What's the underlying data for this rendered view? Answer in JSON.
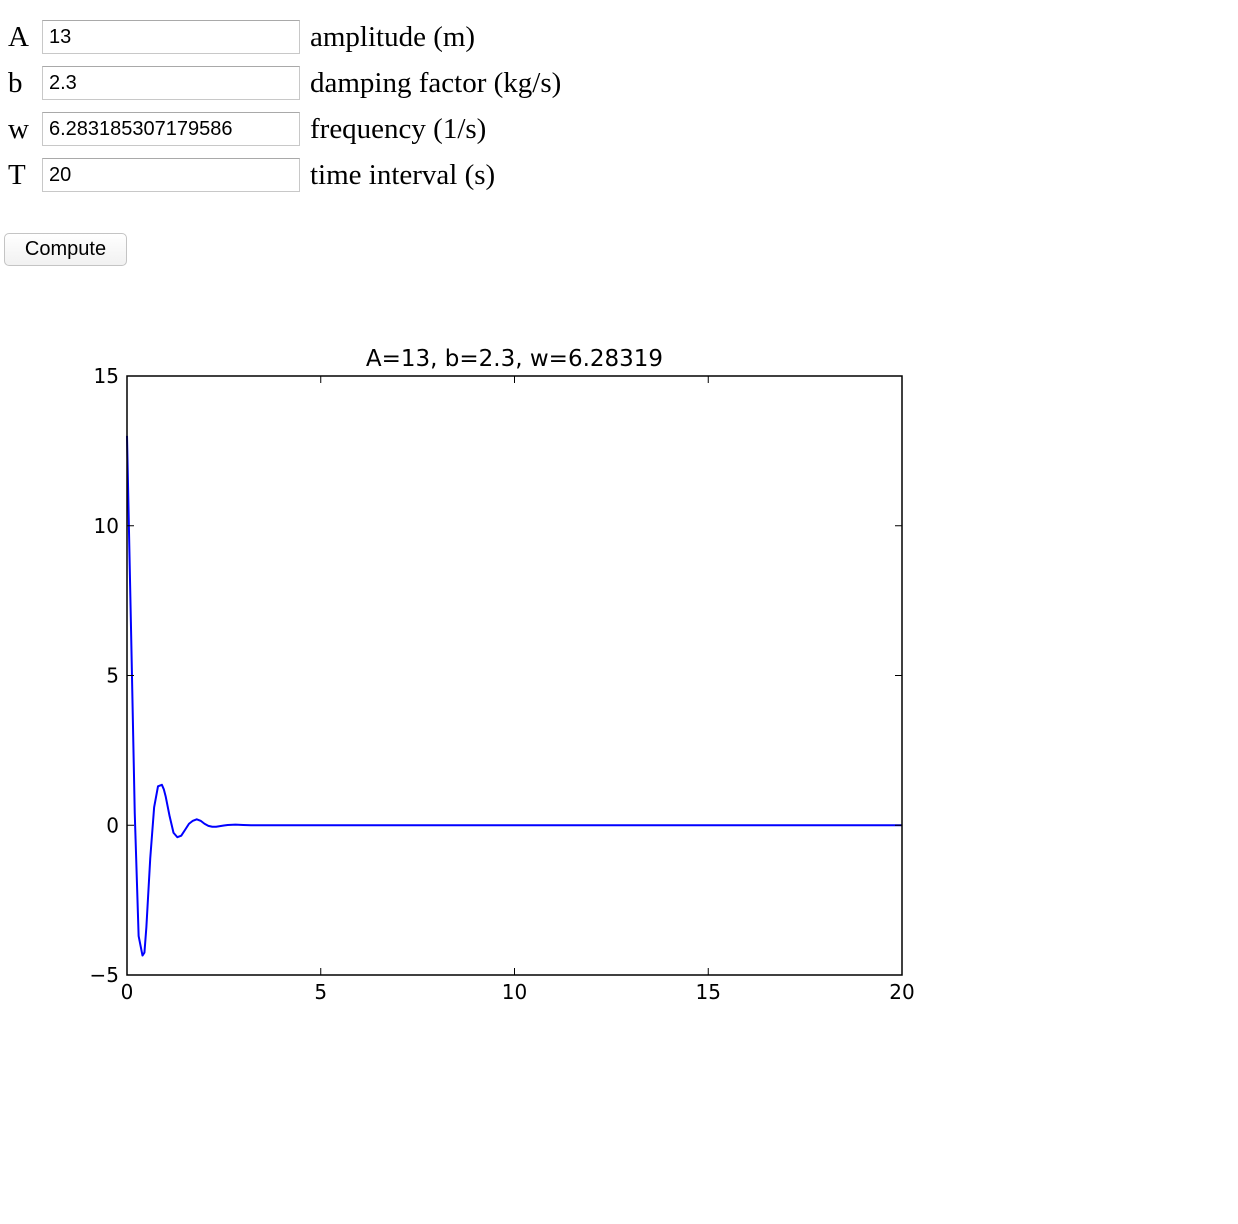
{
  "form": {
    "params": [
      {
        "label": "A",
        "value": "13",
        "description": "amplitude (m)"
      },
      {
        "label": "b",
        "value": "2.3",
        "description": "damping factor (kg/s)"
      },
      {
        "label": "w",
        "value": "6.283185307179586",
        "description": "frequency (1/s)"
      },
      {
        "label": "T",
        "value": "20",
        "description": "time interval (s)"
      }
    ],
    "compute_label": "Compute"
  },
  "chart_data": {
    "type": "line",
    "title": "A=13, b=2.3, w=6.28319",
    "xlabel": "",
    "ylabel": "",
    "xlim": [
      0,
      20
    ],
    "ylim": [
      -5,
      15
    ],
    "xticks": [
      0,
      5,
      10,
      15,
      20
    ],
    "yticks": [
      -5,
      0,
      5,
      10,
      15
    ],
    "xtick_labels": [
      "0",
      "5",
      "10",
      "15",
      "20"
    ],
    "ytick_labels": [
      "−5",
      "0",
      "5",
      "10",
      "15"
    ],
    "grid": false,
    "line_color": "#0000ff",
    "series": [
      {
        "x": [
          0,
          0.1,
          0.2,
          0.3,
          0.4,
          0.45,
          0.5,
          0.6,
          0.7,
          0.8,
          0.9,
          0.95,
          1.0,
          1.1,
          1.2,
          1.3,
          1.4,
          1.5,
          1.6,
          1.7,
          1.8,
          1.9,
          2.0,
          2.1,
          2.2,
          2.3,
          2.4,
          2.5,
          2.6,
          2.8,
          3.0,
          3.2,
          3.5,
          4.0,
          5.0,
          10.0,
          15.0,
          20.0
        ],
        "y": [
          13.0,
          6.8,
          0.4,
          -3.7,
          -4.35,
          -4.25,
          -3.4,
          -1.1,
          0.6,
          1.3,
          1.35,
          1.2,
          0.95,
          0.3,
          -0.25,
          -0.4,
          -0.35,
          -0.15,
          0.05,
          0.15,
          0.2,
          0.15,
          0.05,
          -0.02,
          -0.05,
          -0.05,
          -0.03,
          -0.01,
          0.01,
          0.02,
          0.01,
          0.0,
          0.0,
          0.0,
          0.0,
          0.0,
          0.0,
          0.0
        ]
      }
    ]
  }
}
